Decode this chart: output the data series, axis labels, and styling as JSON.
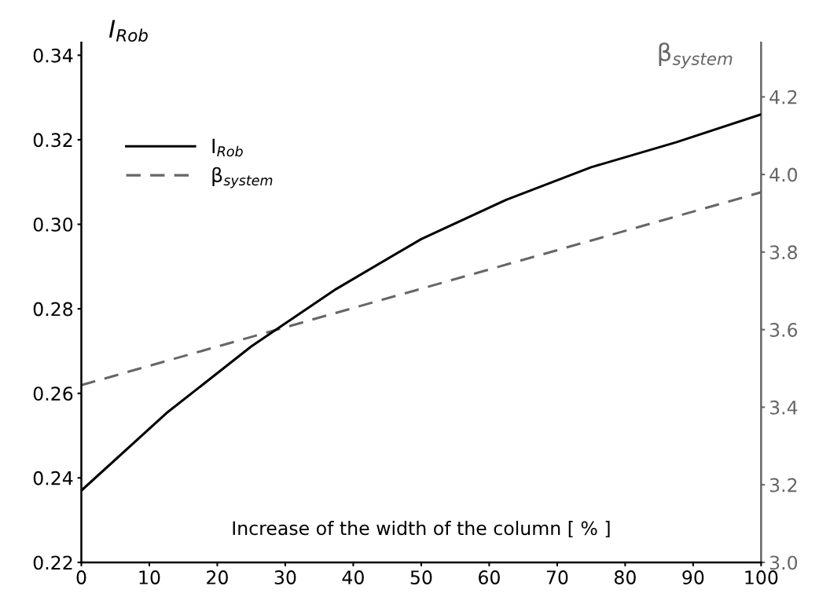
{
  "chart_data": {
    "type": "line",
    "xlabel": "Increase of the width of the column [ % ]",
    "ylabel": "I$_{Rob}$",
    "y2label": "β$_{system}$",
    "x": [
      0,
      12.5,
      25,
      37.5,
      50,
      62.5,
      75,
      87.5,
      100
    ],
    "series": [
      {
        "name": "I$_{Rob}$",
        "color": "#000000",
        "line_style": "solid",
        "values": [
          0.237,
          0.2553,
          0.2711,
          0.2847,
          0.2965,
          0.3058,
          0.3135,
          0.3194,
          0.326
        ]
      },
      {
        "name": "β$_{system}$",
        "color": "#666666",
        "line_style": "dashed",
        "axis": "y2",
        "x": [
          0,
          100
        ],
        "values": [
          3.457,
          3.954
        ]
      }
    ],
    "xlim": [
      0,
      100
    ],
    "xticks": [
      0,
      10,
      20,
      30,
      40,
      50,
      60,
      70,
      80,
      90,
      100
    ],
    "ylim": [
      0.22,
      0.343
    ],
    "yticks": [
      0.22,
      0.24,
      0.26,
      0.28,
      {
        "value": 0.3,
        "label": "0.30"
      },
      0.32,
      0.34
    ],
    "y2lim": [
      3.0,
      4.34
    ],
    "y2ticks": [
      {
        "value": 3.0,
        "label": "3.0"
      },
      3.2,
      3.4,
      3.6,
      3.8,
      {
        "value": 4.0,
        "label": "4.0"
      },
      4.2
    ],
    "grid": false,
    "legend": "top left",
    "marker": "none"
  }
}
